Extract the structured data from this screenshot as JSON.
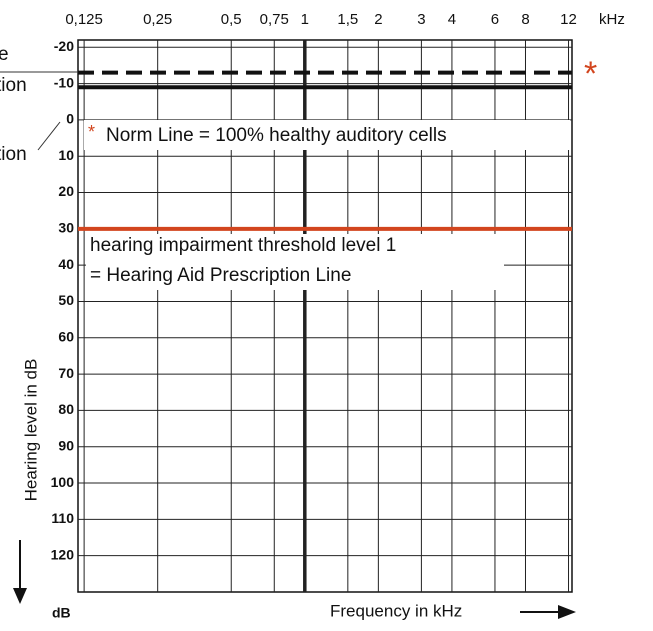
{
  "chart_data": {
    "type": "audiogram",
    "x_unit": "kHz",
    "ylabel": "Hearing level in dB",
    "y_unit": "dB",
    "xlabel": "Frequency in kHz",
    "log_x": true,
    "xlim": [
      0.118,
      12.4
    ],
    "xticks": [
      {
        "value": 0.125,
        "label": "0,125"
      },
      {
        "value": 0.25,
        "label": "0,25"
      },
      {
        "value": 0.5,
        "label": "0,5"
      },
      {
        "value": 0.75,
        "label": "0,75"
      },
      1,
      {
        "value": 1.5,
        "label": "1,5"
      },
      2,
      3,
      4,
      6,
      8,
      12
    ],
    "highlight_x": 1,
    "ylim": [
      -22,
      130
    ],
    "y_reversed": true,
    "yticks": [
      -20,
      -10,
      0,
      10,
      20,
      30,
      40,
      50,
      60,
      70,
      80,
      90,
      100,
      110,
      120
    ],
    "grid": true,
    "reference_lines": [
      {
        "value": -13,
        "color": "#111111",
        "dashed": true
      },
      {
        "value": -9,
        "color": "#111111",
        "dashed": false
      },
      {
        "value": 30,
        "color": "#d2451e",
        "dashed": false
      }
    ],
    "annotations": {
      "star": "*",
      "norm_star": "*",
      "norm": "Norm Line = 100% healthy auditory cells",
      "threshold_1": "hearing impairment threshold level 1",
      "threshold_2": "= Hearing Aid Prescription Line",
      "cut_1": "e",
      "cut_2": "tion",
      "cut_3": "tion"
    }
  }
}
